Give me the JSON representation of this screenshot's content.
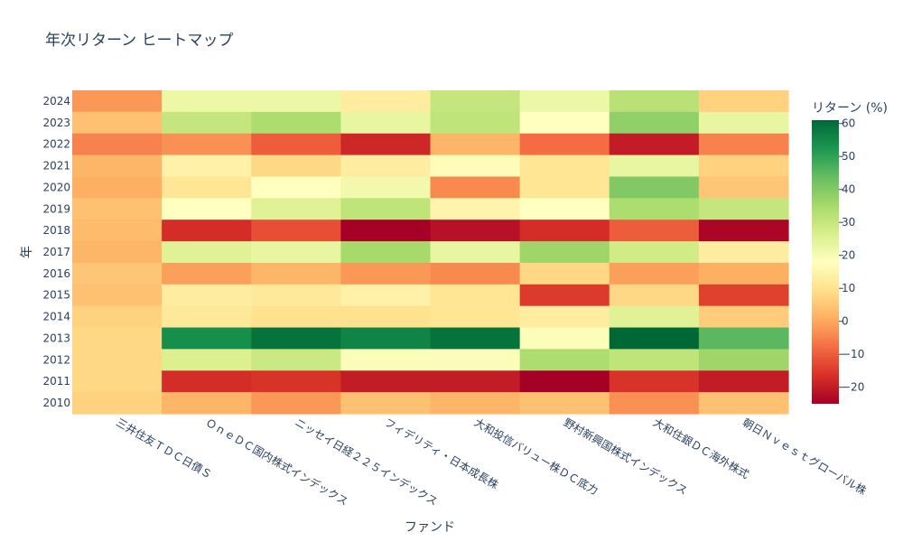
{
  "chart_data": {
    "type": "heatmap",
    "title": "年次リターン ヒートマップ",
    "xlabel": "ファンド",
    "ylabel": "年",
    "colorbar_title": "リターン (%)",
    "colorscale": "RdYlGn",
    "zmin": -25,
    "zmax": 61,
    "colorbar_ticks": [
      60,
      50,
      40,
      30,
      20,
      10,
      0,
      -10,
      -20
    ],
    "colorbar_tick_labels": [
      "60",
      "50",
      "40",
      "30",
      "20",
      "10",
      "0",
      "−10",
      "−20"
    ],
    "x": [
      "三井住友ＴＤＣ日債Ｓ",
      "ＯｎｅＤＣ国内株式インデックス",
      "ニッセイ日経２２５インデックス",
      "フィデリティ・日本成長株",
      "大和投信バリュー株ＤＣ底力",
      "野村新興国株式インデックス",
      "大和住銀ＤＣ海外株式",
      "朝日Ｎｖｅｓｔグローバル株"
    ],
    "y": [
      "2024",
      "2023",
      "2022",
      "2021",
      "2020",
      "2019",
      "2018",
      "2017",
      "2016",
      "2015",
      "2014",
      "2013",
      "2012",
      "2011",
      "2010"
    ],
    "z": [
      [
        -2,
        22,
        22,
        13,
        30,
        22,
        32,
        7
      ],
      [
        4,
        30,
        34,
        23,
        31,
        18,
        38,
        23
      ],
      [
        -5,
        -3,
        -10,
        -18,
        2,
        -8,
        -20,
        -5
      ],
      [
        2,
        14,
        8,
        13,
        17,
        11,
        23,
        7
      ],
      [
        1,
        11,
        18,
        21,
        -4,
        11,
        40,
        5
      ],
      [
        4,
        18,
        25,
        31,
        15,
        18,
        34,
        30
      ],
      [
        3,
        -17,
        -12,
        -25,
        -22,
        -17,
        -10,
        -24
      ],
      [
        2,
        25,
        23,
        35,
        23,
        36,
        28,
        13
      ],
      [
        5,
        -1,
        2,
        -2,
        -4,
        8,
        -1,
        1
      ],
      [
        4,
        13,
        12,
        14,
        11,
        -15,
        8,
        -14
      ],
      [
        7,
        12,
        10,
        10,
        11,
        13,
        25,
        6
      ],
      [
        8,
        54,
        59,
        56,
        59,
        19,
        61,
        45
      ],
      [
        8,
        26,
        29,
        19,
        19,
        34,
        31,
        36
      ],
      [
        8,
        -17,
        -16,
        -20,
        -20,
        -25,
        -16,
        -20
      ],
      [
        7,
        2,
        -2,
        4,
        2,
        4,
        -3,
        4
      ]
    ]
  }
}
